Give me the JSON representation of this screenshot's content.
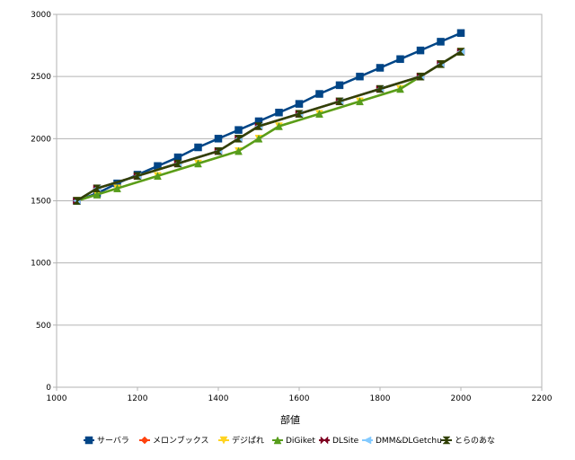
{
  "chart_data": {
    "type": "line",
    "xlabel": "部値",
    "ylabel": "",
    "xlim": [
      1000,
      2200
    ],
    "ylim": [
      0,
      3000
    ],
    "xticks": [
      "1000",
      "1200",
      "1400",
      "1600",
      "1800",
      "2000",
      "2200"
    ],
    "yticks": [
      "0",
      "500",
      "1000",
      "1500",
      "2000",
      "2500",
      "3000"
    ],
    "grid": "horizontal",
    "legend_position": "bottom",
    "series": [
      {
        "name": "サーバラ",
        "color": "#004586",
        "marker": "square",
        "x": [
          1050,
          1100,
          1150,
          1200,
          1250,
          1300,
          1350,
          1400,
          1450,
          1500,
          1550,
          1600,
          1650,
          1700,
          1750,
          1800,
          1850,
          1900,
          1950,
          2000
        ],
        "y": [
          1500,
          1560,
          1640,
          1710,
          1780,
          1850,
          1930,
          2000,
          2070,
          2140,
          2210,
          2280,
          2360,
          2430,
          2500,
          2570,
          2640,
          2710,
          2780,
          2850
        ]
      },
      {
        "name": "メロンブックス",
        "color": "#ff420e",
        "marker": "diamond",
        "x": [
          1100,
          1200,
          1300,
          1400,
          1450,
          1500,
          1600,
          1700,
          1800,
          1900,
          1950,
          2000
        ],
        "y": [
          1600,
          1700,
          1800,
          1900,
          2000,
          2100,
          2200,
          2300,
          2400,
          2500,
          2600,
          2700
        ]
      },
      {
        "name": "デジぱれ",
        "color": "#ffd320",
        "marker": "triangle-down",
        "x": [
          1050,
          1100,
          1150,
          1250,
          1350,
          1450,
          1500,
          1550,
          1650,
          1750,
          1850,
          1900,
          1950,
          2000
        ],
        "y": [
          1500,
          1550,
          1600,
          1700,
          1800,
          1900,
          2000,
          2100,
          2200,
          2300,
          2400,
          2500,
          2600,
          2700
        ]
      },
      {
        "name": "DiGiket",
        "color": "#579d1c",
        "marker": "triangle-up",
        "x": [
          1050,
          1100,
          1150,
          1250,
          1350,
          1450,
          1500,
          1550,
          1650,
          1750,
          1850,
          1900,
          1950,
          2000
        ],
        "y": [
          1500,
          1550,
          1600,
          1700,
          1800,
          1900,
          2000,
          2100,
          2200,
          2300,
          2400,
          2500,
          2600,
          2700
        ]
      },
      {
        "name": "DLSite",
        "color": "#7e0021",
        "marker": "bowtie",
        "x": [
          1050,
          1100,
          1200,
          1300,
          1400,
          1450,
          1500,
          1600,
          1700,
          1800,
          1900,
          1950,
          2000
        ],
        "y": [
          1500,
          1600,
          1700,
          1800,
          1900,
          2000,
          2100,
          2200,
          2300,
          2400,
          2500,
          2600,
          2700
        ]
      },
      {
        "name": "DMM&DLGetchu",
        "color": "#83caff",
        "marker": "triangle-left",
        "x": [
          1050,
          1100,
          1200,
          1300,
          1400,
          1450,
          1500,
          1600,
          1700,
          1800,
          1900,
          1950,
          2000
        ],
        "y": [
          1500,
          1600,
          1700,
          1800,
          1900,
          2000,
          2100,
          2200,
          2300,
          2400,
          2500,
          2600,
          2700
        ]
      },
      {
        "name": "とらのあな",
        "color": "#314004",
        "marker": "bowtie-h",
        "x": [
          1050,
          1100,
          1200,
          1300,
          1400,
          1450,
          1500,
          1600,
          1700,
          1800,
          1900,
          1950,
          2000
        ],
        "y": [
          1500,
          1600,
          1700,
          1800,
          1900,
          2000,
          2100,
          2200,
          2300,
          2400,
          2500,
          2600,
          2700
        ]
      }
    ]
  }
}
